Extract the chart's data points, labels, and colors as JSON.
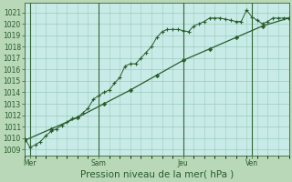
{
  "title": "",
  "xlabel": "Pression niveau de la mer( hPa )",
  "ylabel": "",
  "fig_bg_color": "#b8d8b8",
  "plot_bg_color": "#c8ebe8",
  "grid_color": "#99ccbb",
  "line_color": "#2a5c2a",
  "vline_color": "#336633",
  "xlim": [
    0,
    100
  ],
  "ylim": [
    1008.5,
    1021.8
  ],
  "yticks": [
    1009,
    1010,
    1011,
    1012,
    1013,
    1014,
    1015,
    1016,
    1017,
    1018,
    1019,
    1020,
    1021
  ],
  "day_ticks": [
    {
      "x": 2,
      "label": "Mer"
    },
    {
      "x": 28,
      "label": "Sam"
    },
    {
      "x": 60,
      "label": "Jeu"
    },
    {
      "x": 86,
      "label": "Ven"
    }
  ],
  "line1_x": [
    0,
    2,
    4,
    6,
    8,
    10,
    12,
    14,
    16,
    18,
    20,
    22,
    24,
    26,
    28,
    30,
    32,
    34,
    36,
    38,
    40,
    42,
    44,
    46,
    48,
    50,
    52,
    54,
    56,
    58,
    60,
    62,
    64,
    66,
    68,
    70,
    72,
    74,
    76,
    78,
    80,
    82,
    84,
    86,
    88,
    90,
    92,
    94,
    96,
    98,
    100
  ],
  "line1_y": [
    1010.0,
    1009.2,
    1009.4,
    1009.7,
    1010.2,
    1010.6,
    1010.8,
    1011.1,
    1011.4,
    1011.7,
    1011.8,
    1012.2,
    1012.6,
    1013.4,
    1013.7,
    1014.0,
    1014.2,
    1014.8,
    1015.3,
    1016.3,
    1016.5,
    1016.5,
    1017.0,
    1017.5,
    1018.0,
    1018.8,
    1019.3,
    1019.5,
    1019.5,
    1019.5,
    1019.4,
    1019.3,
    1019.8,
    1020.0,
    1020.2,
    1020.5,
    1020.5,
    1020.5,
    1020.4,
    1020.3,
    1020.2,
    1020.2,
    1021.2,
    1020.6,
    1020.3,
    1020.0,
    1020.2,
    1020.5,
    1020.5,
    1020.5,
    1020.5
  ],
  "line2_x": [
    0,
    10,
    20,
    30,
    40,
    50,
    60,
    70,
    80,
    90,
    100
  ],
  "line2_y": [
    1009.8,
    1010.8,
    1011.8,
    1013.0,
    1014.2,
    1015.5,
    1016.8,
    1017.8,
    1018.8,
    1019.8,
    1020.5
  ],
  "font_color": "#2a5c2a",
  "fontsize_ticks": 5.5,
  "fontsize_xlabel": 7.5
}
